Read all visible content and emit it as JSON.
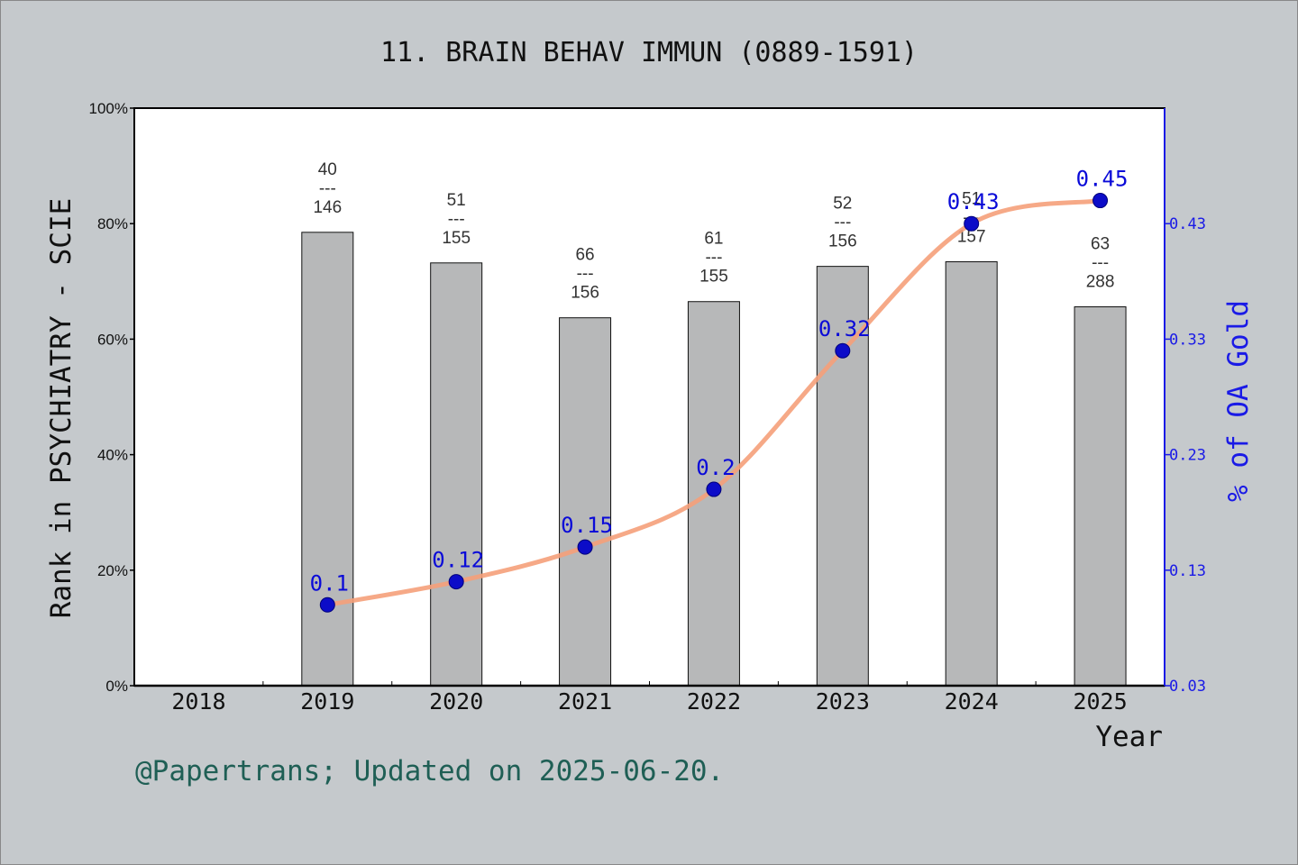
{
  "chart_data": {
    "type": "bar",
    "title": "11. BRAIN BEHAV IMMUN (0889-1591)",
    "xlabel": "Year",
    "ylabel": "Rank in PSYCHIATRY - SCIE",
    "y2label": "% of OA Gold",
    "categories": [
      "2018",
      "2019",
      "2020",
      "2021",
      "2022",
      "2023",
      "2024",
      "2025"
    ],
    "ylim": [
      0,
      100
    ],
    "yticks": [
      "0%",
      "20%",
      "40%",
      "60%",
      "80%",
      "100%"
    ],
    "y2lim": [
      0.03,
      0.53
    ],
    "y2ticks": [
      "0.03",
      "0.13",
      "0.23",
      "0.33",
      "0.43"
    ],
    "series": [
      {
        "kind": "bar",
        "axis": "left",
        "color": "#b7b8b9",
        "values": [
          null,
          78.5,
          73.2,
          63.7,
          66.5,
          72.6,
          73.4,
          65.6
        ],
        "labels": [
          null,
          [
            "40",
            "---",
            "146"
          ],
          [
            "51",
            "---",
            "155"
          ],
          [
            "66",
            "---",
            "156"
          ],
          [
            "61",
            "---",
            "155"
          ],
          [
            "52",
            "---",
            "156"
          ],
          [
            "51",
            "---",
            "157"
          ],
          [
            "63",
            "---",
            "288"
          ]
        ]
      },
      {
        "kind": "line",
        "axis": "right",
        "color": "#f5a07a",
        "marker_color": "#0c0cc8",
        "values": [
          null,
          0.1,
          0.12,
          0.15,
          0.2,
          0.32,
          0.43,
          0.45
        ],
        "labels": [
          null,
          "0.1",
          "0.12",
          "0.15",
          "0.2",
          "0.32",
          "0.43",
          "0.45"
        ]
      }
    ],
    "grid": false,
    "legend": "none"
  },
  "footer": "@Papertrans; Updated on 2025-06-20."
}
